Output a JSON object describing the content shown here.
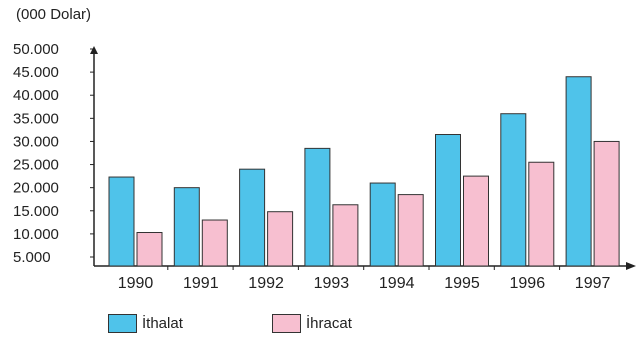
{
  "chart_data": {
    "type": "bar",
    "unit_label": "(000 Dolar)",
    "categories": [
      "1990",
      "1991",
      "1992",
      "1993",
      "1994",
      "1995",
      "1996",
      "1997"
    ],
    "y_ticks": [
      "5.000",
      "10.000",
      "15.000",
      "20.000",
      "25.000",
      "30.000",
      "35.000",
      "40.000",
      "45.000",
      "50.000"
    ],
    "ylim": [
      5000,
      50000
    ],
    "series": [
      {
        "name": "İthalat",
        "color": "#4fc3ea",
        "values": [
          22300,
          20000,
          24000,
          28500,
          21000,
          31500,
          36000,
          44000
        ]
      },
      {
        "name": "İhracat",
        "color": "#f7bfd0",
        "values": [
          10300,
          13000,
          14800,
          16300,
          18500,
          22500,
          25500,
          30000
        ]
      }
    ],
    "legend_position": "bottom-left",
    "grid": false
  }
}
